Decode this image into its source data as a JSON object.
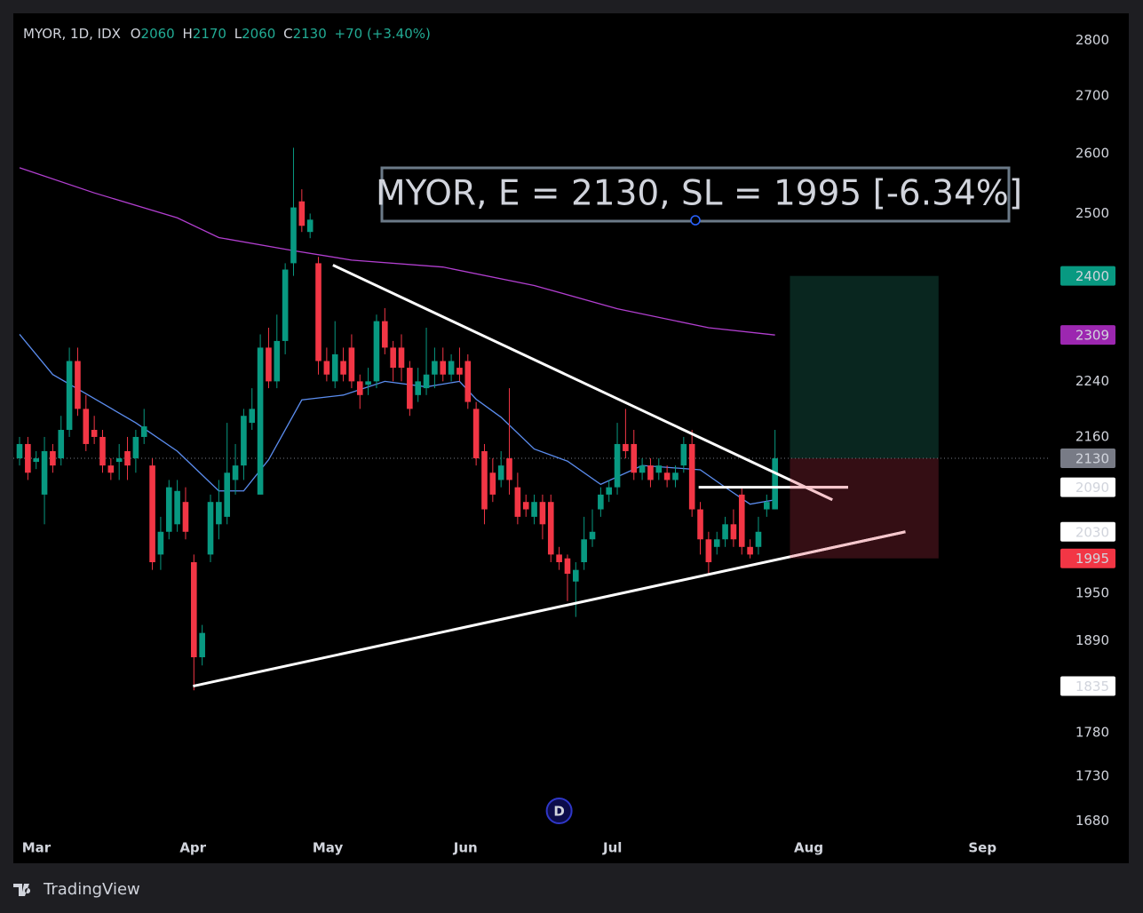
{
  "chart_data": {
    "type": "candlestick",
    "symbol": "MYOR, 1D, IDX",
    "ohlc_labels": [
      "O",
      "H",
      "L",
      "C"
    ],
    "change": "+70 (+3.40%)",
    "annotation": "MYOR, E = 2130, SL = 1995 [-6.34%]",
    "log_scale": true,
    "ylim": [
      1660,
      2845
    ],
    "yticks": [
      1680,
      1730,
      1780,
      1890,
      1950,
      2160,
      2240,
      2500,
      2600,
      2700,
      2800
    ],
    "xlim": [
      -0.75,
      124.2
    ],
    "xticks": [
      {
        "value": 2,
        "label": "Mar"
      },
      {
        "value": 21,
        "label": "Apr"
      },
      {
        "value": 37,
        "label": "May"
      },
      {
        "value": 54,
        "label": "Jun"
      },
      {
        "value": 72,
        "label": "Jul"
      },
      {
        "value": 95,
        "label": "Aug"
      },
      {
        "value": 116,
        "label": "Sep"
      }
    ],
    "up_color": "#089981",
    "down_color": "#f23645",
    "open": [
      2130,
      2150,
      2125,
      2080,
      2140,
      2130,
      2170,
      2270,
      2200,
      2170,
      2160,
      2120,
      2125,
      2140,
      2130,
      2160,
      2120,
      2000,
      2030,
      2040,
      2070,
      1990,
      1870,
      2000,
      2040,
      2050,
      2100,
      2120,
      2180,
      2080,
      2290,
      2240,
      2300,
      2420,
      2520,
      2470,
      2420,
      2270,
      2240,
      2270,
      2290,
      2240,
      2235,
      2240,
      2330,
      2290,
      2290,
      2260,
      2220,
      2230,
      2250,
      2270,
      2250,
      2260,
      2270,
      2200,
      2140,
      2110,
      2100,
      2130,
      2090,
      2070,
      2050,
      2070,
      2070,
      2000,
      1995,
      1965,
      1990,
      2020,
      2060,
      2080,
      2090,
      2150,
      2150,
      2110,
      2120,
      2110,
      2110,
      2100,
      2120,
      2150,
      2060,
      2020,
      2010,
      2020,
      2040,
      2080,
      2010,
      2010,
      2060,
      2060
    ],
    "high": [
      2160,
      2160,
      2140,
      2160,
      2150,
      2190,
      2290,
      2290,
      2220,
      2190,
      2170,
      2130,
      2150,
      2160,
      2170,
      2200,
      2130,
      2050,
      2100,
      2100,
      2090,
      2000,
      1910,
      2080,
      2100,
      2180,
      2150,
      2200,
      2230,
      2310,
      2320,
      2340,
      2420,
      2610,
      2540,
      2500,
      2430,
      2290,
      2330,
      2290,
      2310,
      2250,
      2260,
      2340,
      2350,
      2300,
      2310,
      2270,
      2260,
      2320,
      2290,
      2290,
      2280,
      2290,
      2280,
      2210,
      2150,
      2130,
      2140,
      2230,
      2110,
      2080,
      2080,
      2080,
      2080,
      2010,
      2000,
      1990,
      2050,
      2060,
      2090,
      2100,
      2180,
      2200,
      2170,
      2130,
      2130,
      2130,
      2120,
      2120,
      2160,
      2170,
      2070,
      2030,
      2030,
      2050,
      2060,
      2090,
      2020,
      2050,
      2080,
      2170
    ],
    "low": [
      2120,
      2100,
      2115,
      2040,
      2110,
      2120,
      2160,
      2190,
      2140,
      2150,
      2110,
      2100,
      2100,
      2100,
      2110,
      2150,
      1980,
      1980,
      2020,
      2030,
      2020,
      1830,
      1860,
      1990,
      2020,
      2040,
      2080,
      2100,
      2170,
      2080,
      2230,
      2230,
      2280,
      2400,
      2470,
      2460,
      2250,
      2240,
      2230,
      2240,
      2230,
      2200,
      2220,
      2230,
      2280,
      2240,
      2240,
      2190,
      2210,
      2220,
      2230,
      2240,
      2240,
      2240,
      2200,
      2120,
      2040,
      2070,
      2090,
      2080,
      2040,
      2050,
      2040,
      2020,
      1990,
      1980,
      1940,
      1920,
      1980,
      2010,
      2050,
      2070,
      2080,
      2130,
      2100,
      2100,
      2090,
      2100,
      2090,
      2090,
      2110,
      2050,
      2000,
      1975,
      2000,
      2010,
      2010,
      2000,
      1995,
      2000,
      2050,
      2060
    ],
    "close": [
      2150,
      2110,
      2130,
      2140,
      2120,
      2170,
      2270,
      2200,
      2150,
      2160,
      2120,
      2110,
      2130,
      2120,
      2160,
      2175,
      1990,
      2030,
      2090,
      2085,
      2030,
      1870,
      1900,
      2070,
      2070,
      2110,
      2120,
      2190,
      2200,
      2290,
      2240,
      2300,
      2410,
      2510,
      2480,
      2490,
      2270,
      2250,
      2280,
      2250,
      2240,
      2220,
      2240,
      2330,
      2290,
      2260,
      2260,
      2200,
      2240,
      2250,
      2270,
      2250,
      2270,
      2250,
      2210,
      2130,
      2060,
      2080,
      2120,
      2100,
      2050,
      2060,
      2070,
      2040,
      2000,
      1990,
      1975,
      1980,
      2020,
      2030,
      2080,
      2090,
      2150,
      2140,
      2110,
      2120,
      2100,
      2120,
      2100,
      2110,
      2150,
      2060,
      2020,
      1990,
      2020,
      2040,
      2020,
      2010,
      2000,
      2030,
      2070,
      2130
    ],
    "moving_averages": [
      {
        "color": "#5b8def",
        "x": [
          0,
          4,
          8,
          14,
          19,
          24,
          27,
          30,
          34,
          39,
          44,
          49,
          53,
          55,
          58,
          62,
          66,
          70,
          75,
          82,
          85,
          88,
          91
        ],
        "values": [
          2310,
          2250,
          2222,
          2180,
          2140,
          2085,
          2085,
          2128,
          2213,
          2220,
          2240,
          2232,
          2240,
          2214,
          2188,
          2143,
          2126,
          2094,
          2120,
          2114,
          2090,
          2067,
          2073
        ]
      },
      {
        "color": "#b23fd0",
        "x": [
          0,
          9,
          19,
          24,
          33,
          40,
          51,
          62,
          72,
          83,
          91
        ],
        "values": [
          2576,
          2534,
          2493,
          2461,
          2440,
          2425,
          2414,
          2385,
          2349,
          2320,
          2309
        ]
      }
    ],
    "trendlines": [
      {
        "color": "#ffffff",
        "x": [
          37.75,
          97.9
        ],
        "y": [
          2417,
          2073
        ]
      },
      {
        "color": "#ffffff",
        "x": [
          20.9,
          106.7
        ],
        "y": [
          1835,
          2030
        ]
      }
    ],
    "hline": {
      "color": "#ffffff",
      "x": [
        81.8,
        99.8
      ],
      "value": 2090
    },
    "position": {
      "start": 92.8,
      "end": 110.7,
      "entry": 2130,
      "target": 2400,
      "stop": 1995
    },
    "events": [
      {
        "label": "D",
        "x": 65
      }
    ],
    "brand": "TradingView"
  }
}
